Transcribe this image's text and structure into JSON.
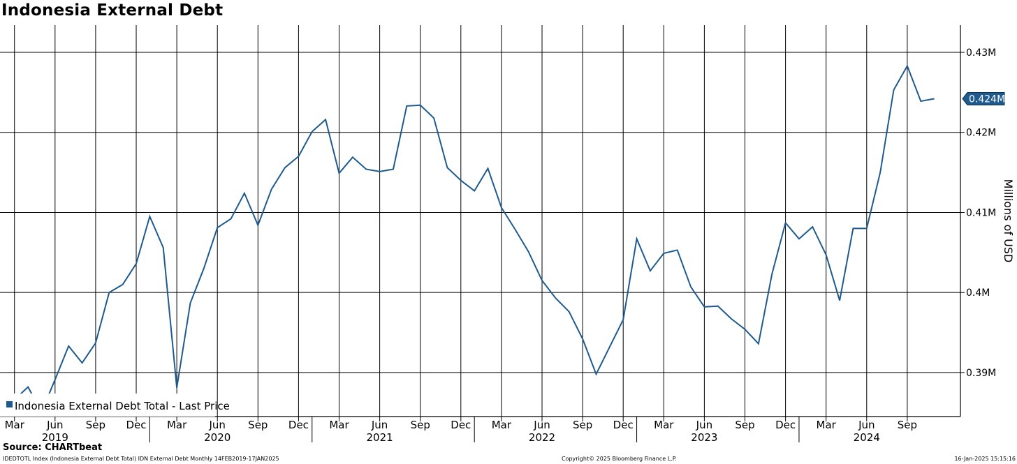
{
  "title": "Indonesia External Debt",
  "source": "Source: CHARTbeat",
  "footer": {
    "left": "IDEDTOTL Index (Indonesia External Debt Total) IDN External Debt  Monthly 14FEB2019-17JAN2025",
    "center": "Copyright© 2025 Bloomberg Finance L.P.",
    "right": "16-Jan-2025 15:15:16"
  },
  "colors": {
    "series": "#1f5a8e",
    "grid": "#000000"
  },
  "chart_data": {
    "type": "line",
    "title": "Indonesia External Debt",
    "ylabel": "Millions of USD",
    "ylim": [
      0.3845,
      0.4334
    ],
    "xlim": [
      "2019-02",
      "2024-12"
    ],
    "yticks": [
      0.39,
      0.4,
      0.41,
      0.42,
      0.43
    ],
    "yticklabels": [
      "0.39M",
      "0.4M",
      "0.41M",
      "0.42M",
      "0.43M"
    ],
    "xticks": [
      {
        "month": "2019-03",
        "label": "Mar"
      },
      {
        "month": "2019-06",
        "label": "Jun"
      },
      {
        "month": "2019-09",
        "label": "Sep"
      },
      {
        "month": "2019-12",
        "label": "Dec"
      },
      {
        "month": "2020-03",
        "label": "Mar"
      },
      {
        "month": "2020-06",
        "label": "Jun"
      },
      {
        "month": "2020-09",
        "label": "Sep"
      },
      {
        "month": "2020-12",
        "label": "Dec"
      },
      {
        "month": "2021-03",
        "label": "Mar"
      },
      {
        "month": "2021-06",
        "label": "Jun"
      },
      {
        "month": "2021-09",
        "label": "Sep"
      },
      {
        "month": "2021-12",
        "label": "Dec"
      },
      {
        "month": "2022-03",
        "label": "Mar"
      },
      {
        "month": "2022-06",
        "label": "Jun"
      },
      {
        "month": "2022-09",
        "label": "Sep"
      },
      {
        "month": "2022-12",
        "label": "Dec"
      },
      {
        "month": "2023-03",
        "label": "Mar"
      },
      {
        "month": "2023-06",
        "label": "Jun"
      },
      {
        "month": "2023-09",
        "label": "Sep"
      },
      {
        "month": "2023-12",
        "label": "Dec"
      },
      {
        "month": "2024-03",
        "label": "Mar"
      },
      {
        "month": "2024-06",
        "label": "Jun"
      },
      {
        "month": "2024-09",
        "label": "Sep"
      }
    ],
    "year_labels": [
      {
        "month": "2019-06",
        "label": "2019"
      },
      {
        "month": "2020-06",
        "label": "2020"
      },
      {
        "month": "2021-06",
        "label": "2021"
      },
      {
        "month": "2022-06",
        "label": "2022"
      },
      {
        "month": "2023-06",
        "label": "2023"
      },
      {
        "month": "2024-06",
        "label": "2024"
      }
    ],
    "grid": true,
    "legend": "bottom-left",
    "last_value_label": "0.424M",
    "series": [
      {
        "name": "Indonesia External Debt Total - Last Price",
        "x": [
          "2019-02",
          "2019-03",
          "2019-04",
          "2019-05",
          "2019-06",
          "2019-07",
          "2019-08",
          "2019-09",
          "2019-10",
          "2019-11",
          "2019-12",
          "2020-01",
          "2020-02",
          "2020-03",
          "2020-04",
          "2020-05",
          "2020-06",
          "2020-07",
          "2020-08",
          "2020-09",
          "2020-10",
          "2020-11",
          "2020-12",
          "2021-01",
          "2021-02",
          "2021-03",
          "2021-04",
          "2021-05",
          "2021-06",
          "2021-07",
          "2021-08",
          "2021-09",
          "2021-10",
          "2021-11",
          "2021-12",
          "2022-01",
          "2022-02",
          "2022-03",
          "2022-04",
          "2022-05",
          "2022-06",
          "2022-07",
          "2022-08",
          "2022-09",
          "2022-10",
          "2022-11",
          "2022-12",
          "2023-01",
          "2023-02",
          "2023-03",
          "2023-04",
          "2023-05",
          "2023-06",
          "2023-07",
          "2023-08",
          "2023-09",
          "2023-10",
          "2023-11",
          "2023-12",
          "2024-01",
          "2024-02",
          "2024-03",
          "2024-04",
          "2024-05",
          "2024-06",
          "2024-07",
          "2024-08",
          "2024-09",
          "2024-10",
          "2024-11"
        ],
        "values": [
          0.3862,
          0.3866,
          0.3882,
          0.3851,
          0.3891,
          0.3933,
          0.3912,
          0.3937,
          0.4,
          0.401,
          0.4036,
          0.4095,
          0.4056,
          0.3881,
          0.3987,
          0.403,
          0.4081,
          0.4092,
          0.4124,
          0.4084,
          0.4129,
          0.4156,
          0.417,
          0.4201,
          0.4216,
          0.4149,
          0.4169,
          0.4154,
          0.4151,
          0.4154,
          0.4233,
          0.4234,
          0.4218,
          0.4156,
          0.414,
          0.4127,
          0.4155,
          0.4106,
          0.4079,
          0.4051,
          0.4015,
          0.3993,
          0.3976,
          0.3942,
          0.3898,
          0.3932,
          0.3966,
          0.4067,
          0.4027,
          0.4049,
          0.4053,
          0.4007,
          0.3982,
          0.3983,
          0.3967,
          0.3954,
          0.3936,
          0.4023,
          0.4087,
          0.4067,
          0.4082,
          0.4047,
          0.399,
          0.408,
          0.408,
          0.415,
          0.4253,
          0.4283,
          0.4239,
          0.4242
        ]
      }
    ]
  }
}
